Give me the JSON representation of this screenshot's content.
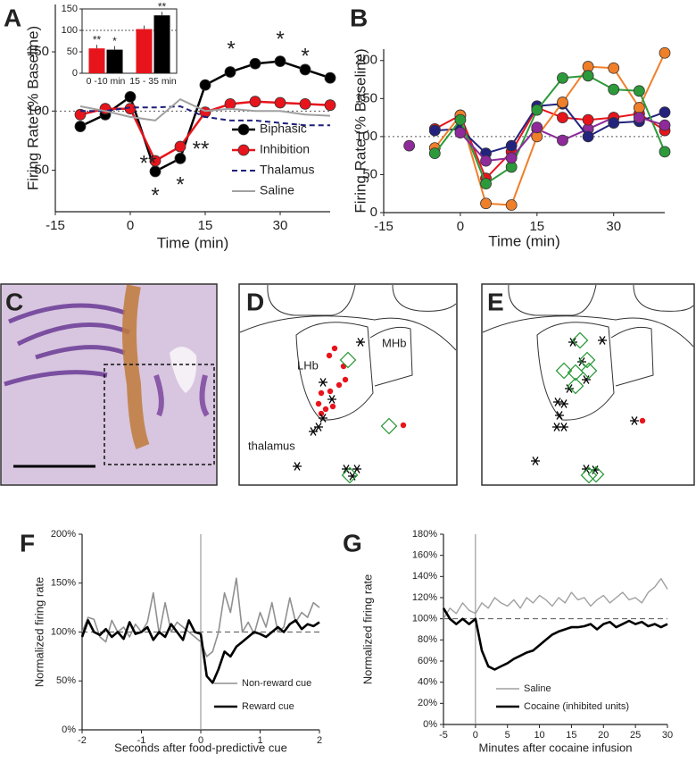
{
  "chart_data": [
    {
      "type": "line",
      "label": "A",
      "xlabel": "Time (min)",
      "ylabel": "Firing Rate (% Baseline)",
      "x": [
        -10,
        -5,
        0,
        5,
        10,
        15,
        20,
        25,
        30,
        35,
        40
      ],
      "xlim": [
        -15,
        40
      ],
      "xticks": [
        -15,
        0,
        15,
        30
      ],
      "ylim": [
        15,
        190
      ],
      "yticks": [
        50,
        100,
        150
      ],
      "hline": 100,
      "hline_style": "dotted",
      "legend": "lower right",
      "series": [
        {
          "name": "Biphasic",
          "color": "#000000",
          "marker": "circle",
          "values": [
            87,
            97,
            112,
            49,
            60,
            122,
            133,
            140,
            142,
            135,
            128
          ]
        },
        {
          "name": "Inhibition",
          "color": "#e8141c",
          "marker": "circle",
          "values": [
            97,
            102,
            102,
            58,
            70,
            99,
            106,
            108,
            107,
            106,
            105
          ]
        },
        {
          "name": "Thalamus",
          "color": "#1f1f7a",
          "dash": "dashed",
          "values": [
            100,
            100,
            103,
            103,
            104,
            95,
            92,
            92,
            90,
            88,
            88
          ]
        },
        {
          "name": "Saline",
          "color": "#a0a0a0",
          "values": [
            104,
            100,
            95,
            92,
            110,
            100,
            102,
            100,
            100,
            97,
            96
          ]
        }
      ],
      "annotations": [
        {
          "text": "*",
          "color": "#000000"
        },
        {
          "text": "*",
          "color": "#000000"
        },
        {
          "text": "*",
          "color": "#000000"
        },
        {
          "text": "*",
          "color": "#000000"
        },
        {
          "text": "*",
          "color": "#000000"
        },
        {
          "text": "**",
          "color": "#e8141c"
        },
        {
          "text": "**",
          "color": "#e8141c"
        }
      ]
    },
    {
      "type": "bar",
      "categories": [
        "0 -10 min",
        "15 - 35 min"
      ],
      "ylim": [
        0,
        150
      ],
      "yticks": [
        0,
        50,
        100,
        150
      ],
      "hline": 100,
      "series": [
        {
          "color": "#e8141c",
          "values": [
            58,
            103
          ]
        },
        {
          "color": "#000000",
          "values": [
            55,
            135
          ]
        }
      ],
      "annotations": [
        {
          "text": "**"
        },
        {
          "text": "*"
        },
        {
          "text": "**"
        }
      ]
    },
    {
      "type": "line",
      "label": "B",
      "xlabel": "Time (min)",
      "ylabel": "Firing Rate (% Baseline)",
      "x": [
        -10,
        -5,
        0,
        5,
        10,
        15,
        20,
        25,
        30,
        35,
        40
      ],
      "xlim": [
        -15,
        40
      ],
      "xticks": [
        -15,
        0,
        15,
        30
      ],
      "ylim": [
        0,
        215
      ],
      "yticks": [
        0,
        50,
        100,
        150,
        200
      ],
      "hline": 100,
      "hline_style": "dotted",
      "series": [
        {
          "color": "#8e2a9a",
          "marker": "circle",
          "values": [
            88,
            null,
            null,
            null,
            null,
            110,
            95,
            110,
            125,
            null,
            null
          ]
        },
        {
          "color": "#e8141c",
          "marker": "circle",
          "values": [
            null,
            110,
            128,
            45,
            80,
            138,
            125,
            122,
            125,
            130,
            108
          ]
        },
        {
          "color": "#23237e",
          "marker": "circle",
          "values": [
            null,
            108,
            110,
            78,
            88,
            140,
            143,
            100,
            118,
            120,
            132
          ]
        },
        {
          "color": "#f07f2a",
          "marker": "circle",
          "values": [
            null,
            85,
            128,
            12,
            10,
            100,
            145,
            192,
            190,
            138,
            210
          ]
        },
        {
          "color": "#2c9a3a",
          "marker": "circle",
          "values": [
            null,
            78,
            122,
            38,
            60,
            135,
            177,
            180,
            162,
            160,
            80
          ]
        },
        {
          "color": "#8e2a9a",
          "marker": "circle",
          "values": [
            null,
            null,
            105,
            68,
            72,
            112,
            null,
            null,
            null,
            125,
            115
          ]
        }
      ]
    },
    {
      "type": "line",
      "label": "F",
      "xlabel": "Seconds after food-predictive cue",
      "ylabel": "Normalized firing rate",
      "xlim": [
        -2,
        2
      ],
      "xticks": [
        -2,
        -1,
        0,
        1,
        2
      ],
      "ylim": [
        0,
        200
      ],
      "yticks": [
        {
          "value": 0,
          "label": "0%"
        },
        {
          "value": 50,
          "label": "50%"
        },
        {
          "value": 100,
          "label": "100%"
        },
        {
          "value": 150,
          "label": "150%"
        },
        {
          "value": 200,
          "label": "200%"
        }
      ],
      "hline": 100,
      "hline_style": "dashed",
      "vline": 0,
      "legend": "lower right",
      "x": [
        -2,
        -1.9,
        -1.8,
        -1.7,
        -1.6,
        -1.5,
        -1.4,
        -1.3,
        -1.2,
        -1.1,
        -1,
        -0.9,
        -0.8,
        -0.7,
        -0.6,
        -0.5,
        -0.4,
        -0.3,
        -0.2,
        -0.1,
        0,
        0.1,
        0.2,
        0.3,
        0.4,
        0.5,
        0.6,
        0.7,
        0.8,
        0.9,
        1,
        1.1,
        1.2,
        1.3,
        1.4,
        1.5,
        1.6,
        1.7,
        1.8,
        1.9,
        2
      ],
      "series": [
        {
          "name": "Non-reward cue",
          "color": "#909090",
          "values": [
            100,
            115,
            113,
            95,
            90,
            112,
            100,
            105,
            95,
            108,
            100,
            110,
            140,
            98,
            130,
            100,
            110,
            105,
            100,
            95,
            90,
            75,
            80,
            100,
            140,
            120,
            155,
            100,
            110,
            98,
            120,
            105,
            130,
            100,
            105,
            135,
            110,
            120,
            115,
            130,
            125
          ]
        },
        {
          "name": "Reward cue",
          "color": "#000000",
          "values": [
            95,
            112,
            100,
            97,
            103,
            95,
            100,
            93,
            110,
            98,
            100,
            105,
            92,
            100,
            95,
            108,
            100,
            92,
            112,
            100,
            98,
            55,
            48,
            62,
            80,
            75,
            85,
            90,
            95,
            100,
            98,
            95,
            100,
            105,
            100,
            108,
            112,
            103,
            108,
            106,
            110
          ]
        }
      ]
    },
    {
      "type": "line",
      "label": "G",
      "xlabel": "Minutes after cocaine infusion",
      "ylabel": "Normalized firing rate",
      "xlim": [
        -5,
        30
      ],
      "xticks": [
        -5,
        0,
        5,
        10,
        15,
        20,
        25,
        30
      ],
      "ylim": [
        0,
        180
      ],
      "yticks": [
        {
          "value": 0,
          "label": "0%"
        },
        {
          "value": 20,
          "label": "20%"
        },
        {
          "value": 40,
          "label": "40%"
        },
        {
          "value": 60,
          "label": "60%"
        },
        {
          "value": 80,
          "label": "80%"
        },
        {
          "value": 100,
          "label": "100%"
        },
        {
          "value": 120,
          "label": "120%"
        },
        {
          "value": 140,
          "label": "140%"
        },
        {
          "value": 160,
          "label": "160%"
        },
        {
          "value": 180,
          "label": "180%"
        }
      ],
      "hline": 100,
      "hline_style": "dashed",
      "vline": 0,
      "legend": "lower right",
      "x": [
        -5,
        -4,
        -3,
        -2,
        -1,
        0,
        1,
        2,
        3,
        4,
        5,
        6,
        7,
        8,
        9,
        10,
        11,
        12,
        13,
        14,
        15,
        16,
        17,
        18,
        19,
        20,
        21,
        22,
        23,
        24,
        25,
        26,
        27,
        28,
        29,
        30
      ],
      "series": [
        {
          "name": "Saline",
          "color": "#a0a0a0",
          "values": [
            100,
            110,
            105,
            115,
            108,
            105,
            115,
            110,
            120,
            115,
            112,
            118,
            110,
            120,
            115,
            122,
            118,
            112,
            120,
            115,
            125,
            118,
            120,
            112,
            118,
            122,
            115,
            120,
            125,
            118,
            120,
            115,
            125,
            130,
            138,
            128
          ]
        },
        {
          "name": "Cocaine (inhibited units)",
          "color": "#000000",
          "values": [
            110,
            100,
            95,
            100,
            95,
            100,
            70,
            55,
            52,
            55,
            58,
            62,
            65,
            68,
            70,
            75,
            80,
            85,
            88,
            90,
            92,
            92,
            93,
            95,
            90,
            95,
            97,
            92,
            95,
            98,
            95,
            97,
            93,
            95,
            92,
            95
          ]
        }
      ]
    }
  ],
  "panels": {
    "C": {
      "label": "C"
    },
    "D": {
      "label": "D",
      "regions": [
        "LHb",
        "MHb",
        "thalamus"
      ]
    },
    "E": {
      "label": "E"
    }
  }
}
